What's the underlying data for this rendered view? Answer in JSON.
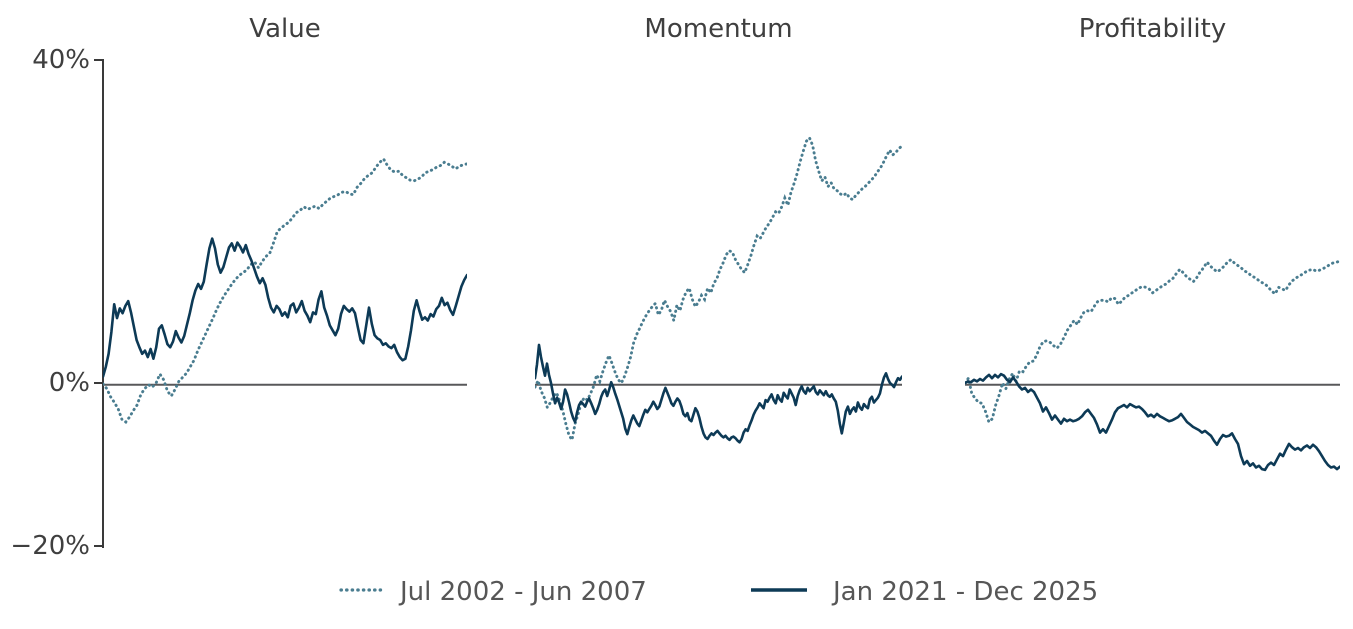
{
  "figure": {
    "y_ticks": [
      "40%",
      "0%",
      "−20%"
    ],
    "y_tick_values": [
      40,
      0,
      -20
    ],
    "zero_line_color": "#58585a",
    "axis_color": "#3a3a3a",
    "text_color": "#3f3f3f",
    "legend": [
      {
        "label": "Jul 2002 - Jun 2007",
        "style": "dotted",
        "color": "#4a7d90"
      },
      {
        "label": "Jan 2021 - Dec 2025",
        "style": "solid",
        "color": "#0d3a56"
      }
    ]
  },
  "chart_data": [
    {
      "type": "line",
      "title": "Value",
      "ylim": [
        -20,
        40
      ],
      "y_unit": "%",
      "grid": false,
      "x_axis_labels": "none",
      "series": [
        {
          "name": "Jul 2002 - Jun 2007",
          "style": "dotted",
          "color": "#4a7d90",
          "values": [
            0.1,
            -0.5,
            -1.5,
            -2.2,
            -3,
            -4.3,
            -4.6,
            -4,
            -3.2,
            -2.5,
            -1.2,
            -0.5,
            0,
            -0.3,
            0.2,
            1.3,
            0.6,
            -0.8,
            -1.4,
            -0.6,
            0.4,
            0.9,
            1.4,
            2.2,
            3,
            4.2,
            5.2,
            6.2,
            7.2,
            8.2,
            9.3,
            10.2,
            11,
            11.7,
            12.4,
            13,
            13.5,
            13.8,
            14.2,
            14.8,
            15.1,
            14.4,
            15.2,
            15.8,
            16.2,
            17.5,
            18.9,
            19.3,
            19.7,
            20,
            20.6,
            21.2,
            21.5,
            21.9,
            21.6,
            21.8,
            22,
            21.7,
            22.2,
            22.6,
            23,
            23.2,
            23.4,
            23.7,
            23.8,
            23.5,
            23.4,
            24.3,
            24.8,
            25.4,
            25.8,
            26.1,
            26.8,
            27.4,
            27.8,
            27,
            26.4,
            26.2,
            26.3,
            25.8,
            25.5,
            25.2,
            25.1,
            25.3,
            25.6,
            26.1,
            26.3,
            26.5,
            26.8,
            27,
            27.4,
            27.2,
            26.9,
            26.6,
            26.9,
            27.1,
            27.2
          ]
        },
        {
          "name": "Jan 2021 - Dec 2025",
          "style": "solid",
          "color": "#0d3a56",
          "values": [
            1,
            2.2,
            3.8,
            6.5,
            9.9,
            8.2,
            9.4,
            8.8,
            9.7,
            10.3,
            8.9,
            7.2,
            5.5,
            4.6,
            3.8,
            4.2,
            3.4,
            4.4,
            3.2,
            4.6,
            6.9,
            7.3,
            6.2,
            5,
            4.6,
            5.3,
            6.6,
            5.8,
            5.2,
            6,
            7.4,
            8.8,
            10.4,
            11.6,
            12.4,
            11.8,
            12.7,
            14.8,
            16.8,
            18,
            16.8,
            14.8,
            13.8,
            14.5,
            15.7,
            16.9,
            17.4,
            16.5,
            17.5,
            17,
            16.3,
            17.2,
            16.1,
            15.3,
            14.3,
            13.3,
            12.5,
            13.1,
            12.3,
            10.7,
            9.5,
            8.9,
            9.7,
            9.3,
            8.5,
            8.9,
            8.3,
            9.7,
            10,
            8.9,
            9.5,
            10.3,
            9.1,
            8.5,
            7.7,
            8.9,
            8.7,
            10.5,
            11.5,
            9.5,
            8.5,
            7.3,
            6.7,
            6.1,
            6.9,
            8.7,
            9.7,
            9.3,
            9,
            9.4,
            8.8,
            7.1,
            5.5,
            5.1,
            7.3,
            9.5,
            7.5,
            6.1,
            5.7,
            5.5,
            4.9,
            5.1,
            4.7,
            4.5,
            4.9,
            4,
            3.4,
            3,
            3.2,
            4.7,
            6.7,
            9.1,
            10.4,
            9.1,
            8,
            8.3,
            7.9,
            8.7,
            8.4,
            9.3,
            9.7,
            10.7,
            9.8,
            10.1,
            9.2,
            8.6,
            9.7,
            10.9,
            12.1,
            12.9,
            13.5
          ]
        }
      ]
    },
    {
      "type": "line",
      "title": "Momentum",
      "ylim": [
        -20,
        40
      ],
      "y_unit": "%",
      "grid": false,
      "x_axis_labels": "none",
      "series": [
        {
          "name": "Jul 2002 - Jun 2007",
          "style": "dotted",
          "color": "#4a7d90",
          "values": [
            -0.3,
            0.5,
            -0.8,
            -1.6,
            -2.8,
            -2.2,
            -1.4,
            -1,
            -2,
            -3.2,
            -4.8,
            -6.2,
            -6.8,
            -4.8,
            -3.6,
            -2.2,
            -1.6,
            -1.9,
            -1.1,
            -0.2,
            1.2,
            0.4,
            1.6,
            2.7,
            3.6,
            2.6,
            1.5,
            0.6,
            0.2,
            1,
            2.1,
            3.4,
            5.2,
            6.2,
            7,
            7.8,
            8.5,
            9.1,
            9.6,
            10,
            8.6,
            9.2,
            10.4,
            9.6,
            9,
            7.9,
            9.8,
            9.1,
            10.5,
            11.4,
            11.9,
            10.5,
            9.6,
            10.2,
            11,
            10.5,
            11.9,
            11.3,
            12.5,
            13.1,
            14.2,
            15,
            16,
            16.5,
            16.3,
            15.4,
            14.8,
            14.2,
            13.8,
            14.8,
            15.9,
            17.2,
            18.3,
            18,
            18.7,
            19.4,
            19.9,
            20.6,
            21.3,
            21.1,
            21.9,
            23,
            22.1,
            23.7,
            24.8,
            26,
            27.5,
            28.8,
            30,
            30.4,
            29.5,
            27.6,
            26.3,
            25.1,
            25.6,
            24.4,
            24.9,
            24.1,
            23.9,
            23.5,
            23.3,
            23.6,
            23,
            22.8,
            23.3,
            23.7,
            24.1,
            24.4,
            24.8,
            25.2,
            25.6,
            26.2,
            26.7,
            27.4,
            28.2,
            28.9,
            28.3,
            28.6,
            29.1,
            29.4
          ]
        },
        {
          "name": "Jan 2021 - Dec 2025",
          "style": "solid",
          "color": "#0d3a56",
          "values": [
            0.8,
            2.5,
            4.9,
            3.4,
            2.2,
            1.1,
            2.6,
            1.2,
            0.2,
            -1.1,
            -2.3,
            -1.6,
            -2.2,
            -3,
            -2.1,
            -0.6,
            -1.2,
            -2.2,
            -3.3,
            -4.1,
            -4.6,
            -3.4,
            -2.5,
            -2.1,
            -2.4,
            -2.7,
            -2.1,
            -1.7,
            -2.3,
            -2.9,
            -3.6,
            -3.1,
            -2.4,
            -1.5,
            -0.9,
            -0.6,
            -1.4,
            -0.6,
            0.3,
            -0.3,
            -1.1,
            -1.8,
            -2.6,
            -3.4,
            -4.2,
            -5.4,
            -6.1,
            -5.2,
            -4.4,
            -3.8,
            -4.3,
            -4.8,
            -5.1,
            -4.4,
            -3.7,
            -3.1,
            -3.4,
            -3,
            -2.6,
            -2.1,
            -2.5,
            -3,
            -2.7,
            -1.9,
            -1.1,
            -0.4,
            -1,
            -1.6,
            -2.3,
            -2.6,
            -2.1,
            -1.7,
            -2,
            -2.7,
            -3.6,
            -3.9,
            -3.5,
            -4.3,
            -4.5,
            -3.7,
            -2.9,
            -3.3,
            -4.1,
            -5.2,
            -6,
            -6.5,
            -6.7,
            -6.3,
            -6,
            -6.2,
            -5.9,
            -5.7,
            -6,
            -6.3,
            -6.5,
            -6.3,
            -6.6,
            -6.8,
            -6.5,
            -6.4,
            -6.6,
            -6.9,
            -7.1,
            -6.7,
            -5.9,
            -5.5,
            -5.7,
            -5,
            -4.4,
            -3.7,
            -3.2,
            -2.8,
            -2.3,
            -2.6,
            -2.9,
            -1.9,
            -2.1,
            -1.6,
            -1.2,
            -1.9,
            -2.3,
            -1.3,
            -1.8,
            -2.1,
            -1,
            -1.4,
            -1.7,
            -0.6,
            -1.1,
            -1.6,
            -2.5,
            -1.4,
            -0.7,
            -0.2,
            -0.8,
            -1.1,
            -0.4,
            -0.8,
            -0.5,
            -0.2,
            -0.9,
            -1.2,
            -0.7,
            -1,
            -1.3,
            -0.8,
            -1.3,
            -1.5,
            -1.2,
            -1.7,
            -2.1,
            -3.2,
            -4.8,
            -6,
            -4.7,
            -3.3,
            -2.7,
            -3.6,
            -3.1,
            -2.8,
            -3.3,
            -2.2,
            -2.8,
            -3.1,
            -2.4,
            -2.7,
            -2.9,
            -1.8,
            -1.5,
            -2.2,
            -1.9,
            -1.6,
            -1.1,
            0,
            0.9,
            1.4,
            0.7,
            0.2,
            0,
            -0.3,
            0.3,
            0.8,
            0.6,
            1
          ]
        }
      ]
    },
    {
      "type": "line",
      "title": "Profitability",
      "ylim": [
        -20,
        40
      ],
      "y_unit": "%",
      "grid": false,
      "x_axis_labels": "none",
      "series": [
        {
          "name": "Jul 2002 - Jun 2007",
          "style": "dotted",
          "color": "#4a7d90",
          "values": [
            0.2,
            0.8,
            -1.1,
            -1.7,
            -2.2,
            -2.3,
            -3.3,
            -4.6,
            -4.2,
            -2.5,
            -1.3,
            0.2,
            -0.5,
            0.7,
            1.4,
            0.4,
            1.7,
            1.6,
            2.3,
            2.8,
            2.9,
            3.6,
            4.7,
            5.3,
            5.4,
            5.2,
            4.8,
            4.5,
            5,
            5.8,
            6.7,
            7.3,
            7.9,
            7.4,
            8.3,
            9,
            9.1,
            9,
            9.7,
            10.3,
            10.4,
            10.4,
            10.2,
            10.7,
            10.6,
            9.9,
            10.3,
            10.8,
            11,
            11.3,
            11.6,
            11.9,
            12.1,
            12,
            11.8,
            11.3,
            11.6,
            11.9,
            12.2,
            12.4,
            12.8,
            13.1,
            13.7,
            14.2,
            13.8,
            13.3,
            13,
            12.7,
            13.2,
            13.9,
            14.4,
            15.1,
            14.6,
            14.2,
            13.9,
            14.2,
            14.6,
            15.1,
            15.4,
            15,
            14.7,
            14.4,
            14,
            13.8,
            13.4,
            13.2,
            12.9,
            12.6,
            12.4,
            12,
            11.5,
            11.2,
            12,
            11.8,
            11.6,
            12.3,
            12.8,
            13.1,
            13.4,
            13.6,
            13.9,
            14.1,
            14.2,
            14,
            14.1,
            14.3,
            14.5,
            14.8,
            15,
            15.1,
            15.2
          ]
        },
        {
          "name": "Jan 2021 - Dec 2025",
          "style": "solid",
          "color": "#0d3a56",
          "values": [
            0.2,
            0.4,
            0.3,
            0.6,
            0.4,
            0.7,
            0.5,
            0.9,
            1.2,
            0.8,
            1.2,
            0.9,
            1.3,
            1.1,
            0.6,
            0.3,
            0.9,
            0.4,
            -0.2,
            -0.6,
            -0.4,
            -0.9,
            -0.6,
            -0.9,
            -1.6,
            -2.3,
            -3.3,
            -2.8,
            -3.5,
            -4.3,
            -3.8,
            -4.3,
            -4.8,
            -4.2,
            -4.5,
            -4.3,
            -4.5,
            -4.4,
            -4.2,
            -3.9,
            -3.4,
            -3.1,
            -3.6,
            -4.1,
            -4.9,
            -5.9,
            -5.5,
            -5.9,
            -5.1,
            -4.3,
            -3.4,
            -2.9,
            -2.7,
            -2.5,
            -2.8,
            -2.4,
            -2.6,
            -2.8,
            -2.7,
            -3,
            -3.4,
            -3.9,
            -3.7,
            -4,
            -3.6,
            -3.9,
            -4.1,
            -4.3,
            -4.5,
            -4.4,
            -4.2,
            -4,
            -3.6,
            -4.1,
            -4.6,
            -4.9,
            -5.2,
            -5.4,
            -5.6,
            -5.9,
            -5.7,
            -6,
            -6.3,
            -6.9,
            -7.4,
            -6.7,
            -6.2,
            -6.4,
            -6.3,
            -6,
            -6.7,
            -7.3,
            -8.8,
            -9.8,
            -9.4,
            -10,
            -9.7,
            -10.2,
            -10,
            -10.4,
            -10.5,
            -9.9,
            -9.6,
            -9.9,
            -9.2,
            -8.5,
            -8.8,
            -8,
            -7.3,
            -7.7,
            -8,
            -7.8,
            -8.1,
            -7.7,
            -7.5,
            -7.8,
            -7.4,
            -7.7,
            -8.2,
            -8.8,
            -9.4,
            -9.9,
            -10.2,
            -10.1,
            -10.4,
            -10.1
          ]
        }
      ]
    }
  ]
}
